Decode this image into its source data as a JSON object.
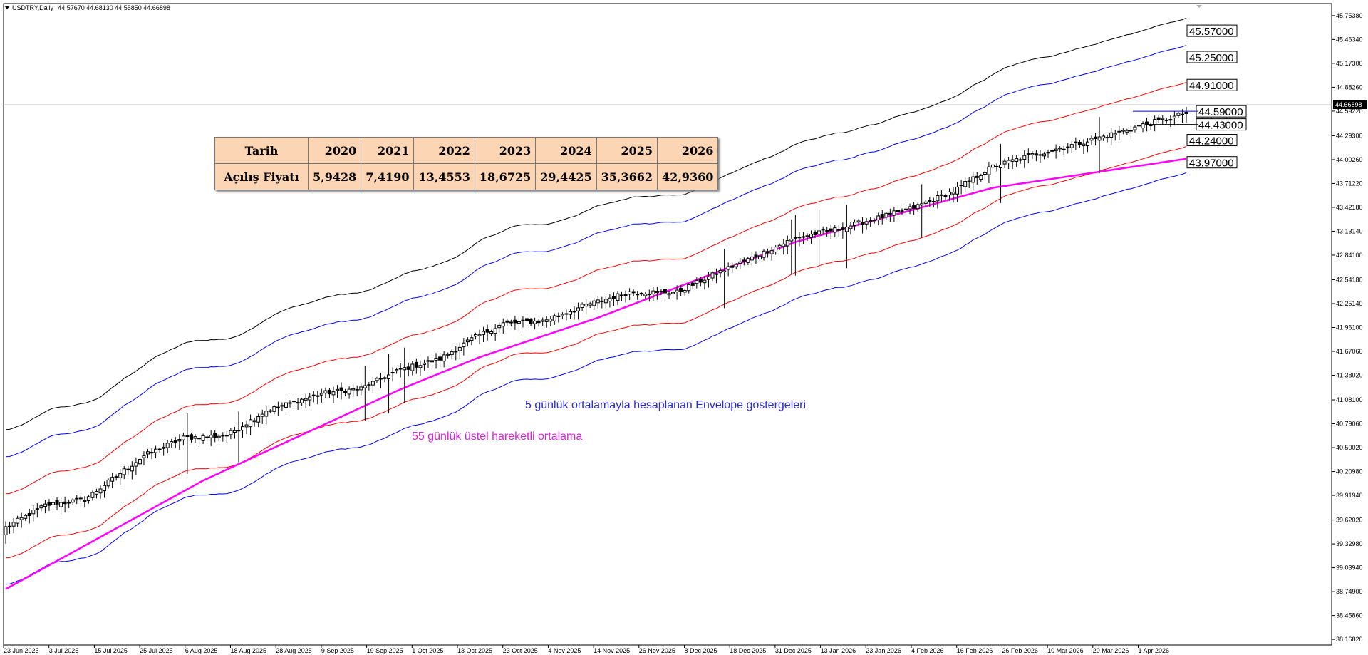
{
  "header": {
    "symbol": "USDTRY,Daily",
    "ohlc": "44.57670 44.68130 44.55850 44.66898"
  },
  "table": {
    "row1_label": "Tarih",
    "row2_label": "Açılış Fiyatı",
    "years": [
      "2020",
      "2021",
      "2022",
      "2023",
      "2024",
      "2025",
      "2026"
    ],
    "prices": [
      "5,9428",
      "7,4190",
      "13,4553",
      "18,6725",
      "29,4425",
      "35,3662",
      "42,9360"
    ]
  },
  "annotations": {
    "envelope": "5 günlük ortalamayla hesaplanan Envelope göstergeleri",
    "ema": "55 günlük üstel hareketli ortalama"
  },
  "colors": {
    "envelope_outer": "#000000",
    "envelope_mid": "#0000ff",
    "envelope_inner": "#ff0000",
    "ema": "#ff00ff",
    "envelope_text": "#2a2ad4",
    "ema_text": "#e020e0",
    "table_bg": "#fcd5b5"
  },
  "chart_data": {
    "type": "candlestick",
    "ylim": [
      38.1,
      45.9
    ],
    "y_ticks": [
      "45.75380",
      "45.46340",
      "45.17300",
      "44.88260",
      "44.59220",
      "44.29300",
      "44.00260",
      "43.71220",
      "43.42180",
      "43.13140",
      "42.84100",
      "42.54180",
      "42.25140",
      "41.96100",
      "41.67060",
      "41.38020",
      "41.08100",
      "40.79060",
      "40.50020",
      "40.20980",
      "39.91940",
      "39.62020",
      "39.32980",
      "39.03940",
      "38.74900",
      "38.45860",
      "38.16820"
    ],
    "x_ticks": [
      "23 Jun 2025",
      "3 Jul 2025",
      "15 Jul 2025",
      "25 Jul 2025",
      "6 Aug 2025",
      "18 Aug 2025",
      "28 Aug 2025",
      "9 Sep 2025",
      "19 Sep 2025",
      "1 Oct 2025",
      "13 Oct 2025",
      "23 Oct 2025",
      "4 Nov 2025",
      "14 Nov 2025",
      "26 Nov 2025",
      "8 Dec 2025",
      "18 Dec 2025",
      "31 Dec 2025",
      "13 Jan 2026",
      "23 Jan 2026",
      "4 Feb 2026",
      "16 Feb 2026",
      "26 Feb 2026",
      "10 Mar 2026",
      "20 Mar 2026",
      "1 Apr 2026"
    ],
    "current_price": "44.66898",
    "level_labels": [
      "45.57000",
      "45.25000",
      "44.91000",
      "44.59000",
      "44.43000",
      "44.24000",
      "43.97000"
    ],
    "level_values": [
      45.57,
      45.25,
      44.91,
      44.59,
      44.43,
      44.24,
      43.97
    ],
    "close_path": [
      [
        0,
        39.53
      ],
      [
        10,
        39.8
      ],
      [
        20,
        39.87
      ],
      [
        35,
        40.4
      ],
      [
        45,
        40.62
      ],
      [
        56,
        40.65
      ],
      [
        66,
        40.95
      ],
      [
        80,
        41.16
      ],
      [
        90,
        41.22
      ],
      [
        100,
        41.45
      ],
      [
        110,
        41.58
      ],
      [
        118,
        41.82
      ],
      [
        126,
        42.01
      ],
      [
        136,
        42.04
      ],
      [
        148,
        42.25
      ],
      [
        158,
        42.39
      ],
      [
        170,
        42.39
      ],
      [
        180,
        42.62
      ],
      [
        190,
        42.83
      ],
      [
        200,
        43.05
      ],
      [
        210,
        43.15
      ],
      [
        220,
        43.28
      ],
      [
        230,
        43.42
      ],
      [
        240,
        43.62
      ],
      [
        250,
        43.92
      ],
      [
        260,
        44.06
      ],
      [
        270,
        44.18
      ],
      [
        280,
        44.31
      ],
      [
        290,
        44.45
      ],
      [
        296,
        44.52
      ],
      [
        300,
        44.6
      ]
    ],
    "ema_path": [
      [
        0,
        38.78
      ],
      [
        50,
        40.1
      ],
      [
        100,
        41.21
      ],
      [
        120,
        41.6
      ],
      [
        150,
        42.08
      ],
      [
        200,
        43.0
      ],
      [
        250,
        43.66
      ],
      [
        300,
        44.02
      ]
    ],
    "envelope_offsets": {
      "outer_upper": 1.18,
      "mid_upper": 0.85,
      "inner_upper": 0.4,
      "inner_lower": -0.38,
      "mid_lower": -0.7
    },
    "candles": 300
  }
}
